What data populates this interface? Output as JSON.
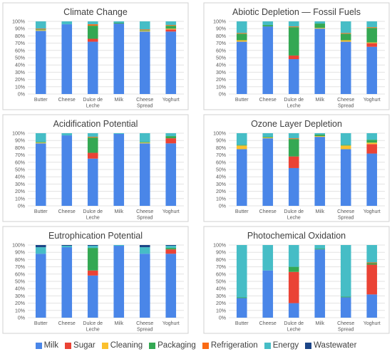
{
  "series_colors": {
    "Milk": "#4a86e8",
    "Sugar": "#ea4335",
    "Cleaning": "#fbc02d",
    "Packaging": "#34a853",
    "Refrigeration": "#fa6a14",
    "Energy": "#46bdc6",
    "Wastewater": "#1c4587"
  },
  "legend": [
    {
      "name": "Milk",
      "color": "#4a86e8"
    },
    {
      "name": "Sugar",
      "color": "#ea4335"
    },
    {
      "name": "Cleaning",
      "color": "#fbc02d"
    },
    {
      "name": "Packaging",
      "color": "#34a853"
    },
    {
      "name": "Refrigeration",
      "color": "#fa6a14"
    },
    {
      "name": "Energy",
      "color": "#46bdc6"
    },
    {
      "name": "Wastewater",
      "color": "#1c4587"
    }
  ],
  "chart_data": [
    {
      "type": "bar",
      "stacked": true,
      "title": "Climate Change",
      "categories": [
        "Butter",
        "Cheese",
        "Dulce de Leche",
        "Milk",
        "Cheese Spread",
        "Yoghurt"
      ],
      "ylim": [
        0,
        100
      ],
      "y_ticks": [
        0,
        10,
        20,
        30,
        40,
        50,
        60,
        70,
        80,
        90,
        100
      ],
      "y_unit": "%",
      "series": [
        {
          "name": "Milk",
          "values": [
            87,
            96,
            72,
            97,
            86,
            86
          ]
        },
        {
          "name": "Sugar",
          "values": [
            0,
            0,
            4,
            0,
            0,
            3
          ]
        },
        {
          "name": "Cleaning",
          "values": [
            1,
            0,
            0,
            0,
            1,
            1
          ]
        },
        {
          "name": "Packaging",
          "values": [
            1,
            0,
            18,
            1,
            1,
            4
          ]
        },
        {
          "name": "Refrigeration",
          "values": [
            1,
            0,
            2,
            0,
            1,
            1
          ]
        },
        {
          "name": "Energy",
          "values": [
            10,
            4,
            4,
            2,
            11,
            5
          ]
        },
        {
          "name": "Wastewater",
          "values": [
            0,
            0,
            0,
            0,
            0,
            0
          ]
        }
      ]
    },
    {
      "type": "bar",
      "stacked": true,
      "title": "Abiotic Depletion — Fossil Fuels",
      "categories": [
        "Butter",
        "Cheese",
        "Dulce de Leche",
        "Milk",
        "Cheese Spread",
        "Yoghurt"
      ],
      "ylim": [
        0,
        100
      ],
      "y_ticks": [
        0,
        10,
        20,
        30,
        40,
        50,
        60,
        70,
        80,
        90,
        100
      ],
      "y_unit": "%",
      "series": [
        {
          "name": "Milk",
          "values": [
            72,
            93,
            48,
            90,
            72,
            65
          ]
        },
        {
          "name": "Sugar",
          "values": [
            0,
            0,
            5,
            0,
            0,
            5
          ]
        },
        {
          "name": "Cleaning",
          "values": [
            2,
            0,
            0,
            1,
            2,
            1
          ]
        },
        {
          "name": "Packaging",
          "values": [
            9,
            2,
            39,
            6,
            9,
            20
          ]
        },
        {
          "name": "Refrigeration",
          "values": [
            1,
            0,
            1,
            0,
            1,
            1
          ]
        },
        {
          "name": "Energy",
          "values": [
            16,
            5,
            7,
            3,
            16,
            8
          ]
        },
        {
          "name": "Wastewater",
          "values": [
            0,
            0,
            0,
            0,
            0,
            0
          ]
        }
      ]
    },
    {
      "type": "bar",
      "stacked": true,
      "title": "Acidification Potential",
      "categories": [
        "Butter",
        "Cheese",
        "Dulce de Leche",
        "Milk",
        "Cheese Spread",
        "Yoghurt"
      ],
      "ylim": [
        0,
        100
      ],
      "y_ticks": [
        0,
        10,
        20,
        30,
        40,
        50,
        60,
        70,
        80,
        90,
        100
      ],
      "y_unit": "%",
      "series": [
        {
          "name": "Milk",
          "values": [
            86,
            97,
            65,
            99,
            86,
            86
          ]
        },
        {
          "name": "Sugar",
          "values": [
            0,
            0,
            8,
            0,
            0,
            7
          ]
        },
        {
          "name": "Cleaning",
          "values": [
            1,
            0,
            0,
            0,
            1,
            0
          ]
        },
        {
          "name": "Packaging",
          "values": [
            1,
            0,
            21,
            0,
            1,
            3
          ]
        },
        {
          "name": "Refrigeration",
          "values": [
            0,
            0,
            1,
            0,
            0,
            0
          ]
        },
        {
          "name": "Energy",
          "values": [
            12,
            3,
            5,
            1,
            12,
            4
          ]
        },
        {
          "name": "Wastewater",
          "values": [
            0,
            0,
            0,
            0,
            0,
            0
          ]
        }
      ]
    },
    {
      "type": "bar",
      "stacked": true,
      "title": "Ozone Layer Depletion",
      "categories": [
        "Butter",
        "Cheese",
        "Dulce de Leche",
        "Milk",
        "Cheese Spread",
        "Yoghurt"
      ],
      "ylim": [
        0,
        100
      ],
      "y_ticks": [
        0,
        10,
        20,
        30,
        40,
        50,
        60,
        70,
        80,
        90,
        100
      ],
      "y_unit": "%",
      "series": [
        {
          "name": "Milk",
          "values": [
            78,
            93,
            52,
            95,
            78,
            72
          ]
        },
        {
          "name": "Sugar",
          "values": [
            0,
            0,
            16,
            0,
            0,
            13
          ]
        },
        {
          "name": "Cleaning",
          "values": [
            5,
            1,
            0,
            1,
            5,
            2
          ]
        },
        {
          "name": "Packaging",
          "values": [
            1,
            1,
            24,
            2,
            1,
            4
          ]
        },
        {
          "name": "Refrigeration",
          "values": [
            0,
            0,
            1,
            0,
            0,
            0
          ]
        },
        {
          "name": "Energy",
          "values": [
            16,
            5,
            7,
            2,
            16,
            9
          ]
        },
        {
          "name": "Wastewater",
          "values": [
            0,
            0,
            0,
            0,
            0,
            0
          ]
        }
      ]
    },
    {
      "type": "bar",
      "stacked": true,
      "title": "Eutrophication Potential",
      "categories": [
        "Butter",
        "Cheese",
        "Dulce de Leche",
        "Milk",
        "Cheese Spread",
        "Yoghurt"
      ],
      "ylim": [
        0,
        100
      ],
      "y_ticks": [
        0,
        10,
        20,
        30,
        40,
        50,
        60,
        70,
        80,
        90,
        100
      ],
      "y_unit": "%",
      "series": [
        {
          "name": "Milk",
          "values": [
            88,
            97,
            58,
            99,
            88,
            88
          ]
        },
        {
          "name": "Sugar",
          "values": [
            0,
            0,
            7,
            0,
            0,
            6
          ]
        },
        {
          "name": "Cleaning",
          "values": [
            0,
            0,
            0,
            0,
            0,
            0
          ]
        },
        {
          "name": "Packaging",
          "values": [
            0,
            0,
            31,
            0,
            0,
            2
          ]
        },
        {
          "name": "Refrigeration",
          "values": [
            0,
            0,
            0,
            0,
            0,
            0
          ]
        },
        {
          "name": "Energy",
          "values": [
            9,
            2,
            3,
            1,
            9,
            3
          ]
        },
        {
          "name": "Wastewater",
          "values": [
            3,
            1,
            1,
            0,
            3,
            1
          ]
        }
      ]
    },
    {
      "type": "bar",
      "stacked": true,
      "title": "Photochemical Oxidation",
      "categories": [
        "Butter",
        "Cheese",
        "Dulce de Leche",
        "Milk",
        "Cheese Spread",
        "Yoghurt"
      ],
      "ylim": [
        0,
        100
      ],
      "y_ticks": [
        0,
        10,
        20,
        30,
        40,
        50,
        60,
        70,
        80,
        90,
        100
      ],
      "y_unit": "%",
      "series": [
        {
          "name": "Milk",
          "values": [
            27,
            65,
            20,
            94,
            28,
            32
          ]
        },
        {
          "name": "Sugar",
          "values": [
            0,
            0,
            43,
            0,
            0,
            41
          ]
        },
        {
          "name": "Cleaning",
          "values": [
            0,
            0,
            0,
            0,
            0,
            0
          ]
        },
        {
          "name": "Packaging",
          "values": [
            1,
            0,
            7,
            1,
            1,
            2
          ]
        },
        {
          "name": "Refrigeration",
          "values": [
            0,
            0,
            0,
            0,
            0,
            1
          ]
        },
        {
          "name": "Energy",
          "values": [
            72,
            35,
            30,
            5,
            71,
            24
          ]
        },
        {
          "name": "Wastewater",
          "values": [
            0,
            0,
            0,
            0,
            0,
            0
          ]
        }
      ]
    }
  ]
}
